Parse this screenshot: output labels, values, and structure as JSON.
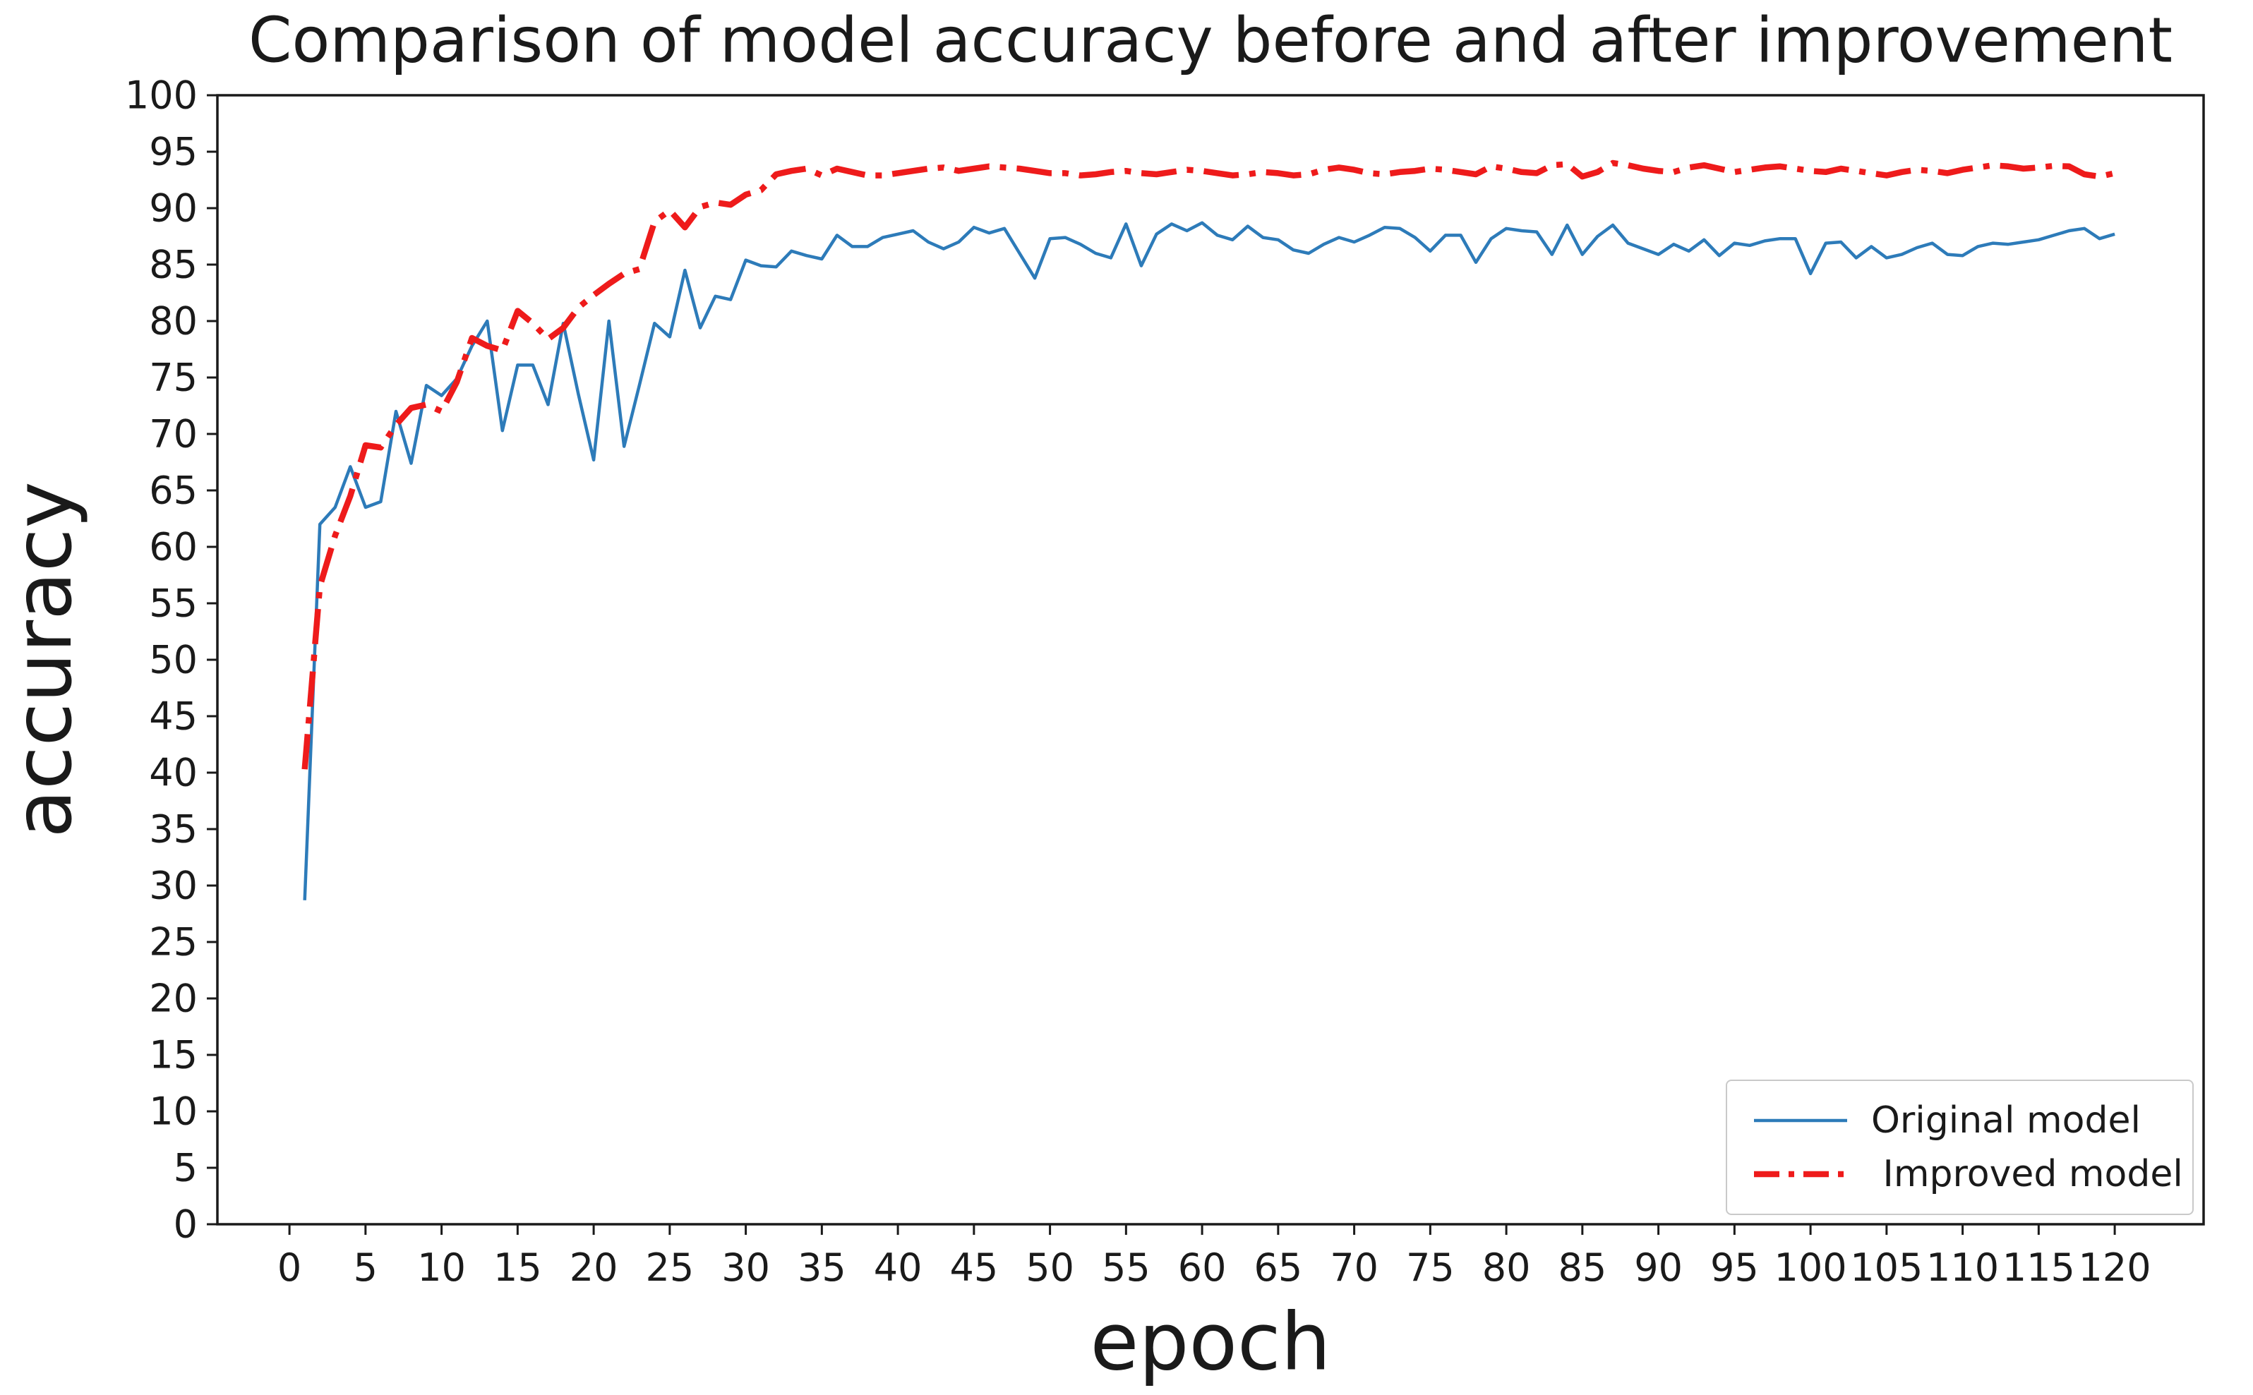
{
  "title": "Comparison of model accuracy before and after improvement",
  "chart_data": {
    "type": "line",
    "title": "Comparison of model accuracy before and after improvement",
    "xlabel": "epoch",
    "ylabel": "accuracy",
    "xlim": [
      -5,
      126
    ],
    "ylim": [
      0,
      100
    ],
    "xticks": [
      0,
      5,
      10,
      15,
      20,
      25,
      30,
      35,
      40,
      45,
      50,
      55,
      60,
      65,
      70,
      75,
      80,
      85,
      90,
      95,
      100,
      105,
      110,
      115,
      120
    ],
    "yticks": [
      0,
      5,
      10,
      15,
      20,
      25,
      30,
      35,
      40,
      45,
      50,
      55,
      60,
      65,
      70,
      75,
      80,
      85,
      90,
      95,
      100
    ],
    "grid": false,
    "legend_position": "lower right",
    "axis_color": "#1a1a1a",
    "x": [
      1,
      2,
      3,
      4,
      5,
      6,
      7,
      8,
      9,
      10,
      11,
      12,
      13,
      14,
      15,
      16,
      17,
      18,
      19,
      20,
      21,
      22,
      23,
      24,
      25,
      26,
      27,
      28,
      29,
      30,
      31,
      32,
      33,
      34,
      35,
      36,
      37,
      38,
      39,
      40,
      41,
      42,
      43,
      44,
      45,
      46,
      47,
      48,
      49,
      50,
      51,
      52,
      53,
      54,
      55,
      56,
      57,
      58,
      59,
      60,
      61,
      62,
      63,
      64,
      65,
      66,
      67,
      68,
      69,
      70,
      71,
      72,
      73,
      74,
      75,
      76,
      77,
      78,
      79,
      80,
      81,
      82,
      83,
      84,
      85,
      86,
      87,
      88,
      89,
      90,
      91,
      92,
      93,
      94,
      95,
      96,
      97,
      98,
      99,
      100,
      101,
      102,
      103,
      104,
      105,
      106,
      107,
      108,
      109,
      110,
      111,
      112,
      113,
      114,
      115,
      116,
      117,
      118,
      119,
      120
    ],
    "series": [
      {
        "name": "Original model",
        "color": "#2d7bb9",
        "style": "solid",
        "linewidth": 4.5,
        "values": [
          28.7,
          62.0,
          63.5,
          67.1,
          63.5,
          64.0,
          72.0,
          67.4,
          74.3,
          73.4,
          74.9,
          77.8,
          80.0,
          70.3,
          76.1,
          76.1,
          72.6,
          79.8,
          73.5,
          67.7,
          80.0,
          68.9,
          74.3,
          79.8,
          78.6,
          84.5,
          79.4,
          82.2,
          81.9,
          85.4,
          84.9,
          84.8,
          86.2,
          85.8,
          85.5,
          87.6,
          86.6,
          86.6,
          87.4,
          87.7,
          88.0,
          87.0,
          86.4,
          87.0,
          88.3,
          87.8,
          88.2,
          86.0,
          83.8,
          87.3,
          87.4,
          86.8,
          86.0,
          85.6,
          88.6,
          84.9,
          87.7,
          88.6,
          88.0,
          88.7,
          87.6,
          87.2,
          88.4,
          87.4,
          87.2,
          86.3,
          86.0,
          86.8,
          87.4,
          87.0,
          87.6,
          88.3,
          88.2,
          87.4,
          86.2,
          87.6,
          87.6,
          85.2,
          87.3,
          88.2,
          88.0,
          87.9,
          85.9,
          88.5,
          85.9,
          87.5,
          88.5,
          86.9,
          86.4,
          85.9,
          86.8,
          86.2,
          87.2,
          85.8,
          86.9,
          86.7,
          87.1,
          87.3,
          87.3,
          84.2,
          86.9,
          87.0,
          85.6,
          86.6,
          85.6,
          85.9,
          86.5,
          86.9,
          85.9,
          85.8,
          86.6,
          86.9,
          86.8,
          87.0,
          87.2,
          87.6,
          88.0,
          88.2,
          87.3,
          87.7
        ]
      },
      {
        "name": " Improved model",
        "color": "#ee1b1b",
        "style": "dashdot",
        "linewidth": 8.5,
        "values": [
          40.3,
          56.5,
          61.0,
          64.5,
          69.0,
          68.8,
          70.8,
          72.3,
          72.6,
          72.0,
          74.6,
          78.5,
          77.8,
          77.4,
          80.9,
          79.8,
          78.4,
          79.4,
          81.2,
          82.3,
          83.3,
          84.2,
          84.6,
          88.8,
          89.8,
          88.3,
          90.1,
          90.5,
          90.3,
          91.2,
          91.6,
          93.0,
          93.3,
          93.5,
          92.9,
          93.5,
          93.2,
          92.9,
          92.9,
          93.1,
          93.3,
          93.5,
          93.6,
          93.3,
          93.5,
          93.7,
          93.6,
          93.5,
          93.3,
          93.1,
          93.1,
          92.9,
          93.0,
          93.2,
          93.3,
          93.1,
          93.0,
          93.2,
          93.4,
          93.3,
          93.1,
          92.9,
          93.0,
          93.2,
          93.1,
          92.9,
          93.0,
          93.4,
          93.6,
          93.4,
          93.1,
          93.0,
          93.2,
          93.3,
          93.5,
          93.4,
          93.2,
          93.0,
          93.7,
          93.5,
          93.2,
          93.1,
          93.8,
          93.9,
          92.8,
          93.2,
          94.0,
          93.8,
          93.5,
          93.3,
          93.2,
          93.6,
          93.8,
          93.5,
          93.2,
          93.4,
          93.6,
          93.7,
          93.5,
          93.3,
          93.2,
          93.5,
          93.3,
          93.1,
          92.9,
          93.2,
          93.4,
          93.3,
          93.1,
          93.4,
          93.6,
          93.8,
          93.7,
          93.5,
          93.6,
          93.75,
          93.7,
          93.0,
          92.8,
          93.1
        ]
      }
    ]
  }
}
